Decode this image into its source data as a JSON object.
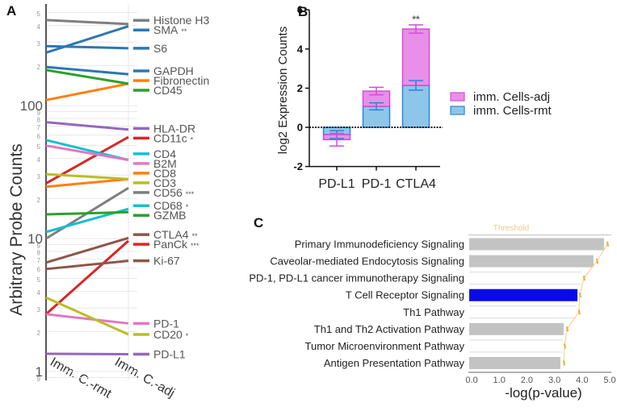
{
  "figure": {
    "panel_labels": [
      "A",
      "B",
      "C"
    ]
  },
  "chart_data": [
    {
      "panel": "A",
      "type": "line",
      "title": "",
      "xlabel": "",
      "ylabel": "Arbitrary Probe Counts",
      "yscale": "log",
      "ylim": [
        0.85,
        560
      ],
      "grid": true,
      "legend": "right (labels at line ends)",
      "categories": [
        "Imm. C.-rmt",
        "Imm. C.-adj"
      ],
      "y_ticks": [
        {
          "value": 500,
          "label": "5"
        },
        {
          "value": 400,
          "label": "4"
        },
        {
          "value": 300,
          "label": "3"
        },
        {
          "value": 200,
          "label": "2"
        },
        {
          "value": 100,
          "label": "100"
        },
        {
          "value": 90,
          "label": "9"
        },
        {
          "value": 80,
          "label": "8"
        },
        {
          "value": 70,
          "label": "7"
        },
        {
          "value": 60,
          "label": "6"
        },
        {
          "value": 50,
          "label": "5"
        },
        {
          "value": 40,
          "label": "4"
        },
        {
          "value": 30,
          "label": "3"
        },
        {
          "value": 20,
          "label": "2"
        },
        {
          "value": 10,
          "label": "10"
        },
        {
          "value": 9,
          "label": "9"
        },
        {
          "value": 8,
          "label": "8"
        },
        {
          "value": 7,
          "label": "7"
        },
        {
          "value": 6,
          "label": "6"
        },
        {
          "value": 5,
          "label": "5"
        },
        {
          "value": 4,
          "label": "4"
        },
        {
          "value": 3,
          "label": "3"
        },
        {
          "value": 2,
          "label": "2"
        },
        {
          "value": 1,
          "label": "1"
        },
        {
          "value": 0.9,
          "label": "9"
        }
      ],
      "series": [
        {
          "name": "Histone H3",
          "values": [
            440,
            410
          ],
          "color": "#7f7f7f",
          "significance": ""
        },
        {
          "name": "SMA",
          "values": [
            250,
            395
          ],
          "color": "#2b78b3",
          "significance": "**"
        },
        {
          "name": "S6",
          "values": [
            280,
            270
          ],
          "color": "#2b78b3",
          "significance": ""
        },
        {
          "name": "GAPDH",
          "values": [
            195,
            172
          ],
          "color": "#2b78b3",
          "significance": ""
        },
        {
          "name": "Fibronectin",
          "values": [
            110,
            146
          ],
          "color": "#ff7f0e",
          "significance": ""
        },
        {
          "name": "CD45",
          "values": [
            185,
            146
          ],
          "color": "#2ca02c",
          "significance": ""
        },
        {
          "name": "HLA-DR",
          "values": [
            75,
            66
          ],
          "color": "#9467bd",
          "significance": ""
        },
        {
          "name": "CD11c",
          "values": [
            26,
            58
          ],
          "color": "#d62728",
          "significance": "*"
        },
        {
          "name": "CD4",
          "values": [
            55,
            39
          ],
          "color": "#17becf",
          "significance": ""
        },
        {
          "name": "B2M",
          "values": [
            50,
            39
          ],
          "color": "#e377c2",
          "significance": ""
        },
        {
          "name": "CD8",
          "values": [
            24.5,
            28
          ],
          "color": "#ff7f0e",
          "significance": ""
        },
        {
          "name": "CD3",
          "values": [
            30.5,
            28
          ],
          "color": "#bcbd22",
          "significance": ""
        },
        {
          "name": "CD56",
          "values": [
            10,
            24
          ],
          "color": "#7f7f7f",
          "significance": "***"
        },
        {
          "name": "CD68",
          "values": [
            11.2,
            16.7
          ],
          "color": "#17becf",
          "significance": "*"
        },
        {
          "name": "GZMB",
          "values": [
            15.2,
            15.8
          ],
          "color": "#2ca02c",
          "significance": ""
        },
        {
          "name": "CTLA4",
          "values": [
            6.6,
            10.1
          ],
          "color": "#8c564b",
          "significance": "**"
        },
        {
          "name": "PanCk",
          "values": [
            2.7,
            9.6
          ],
          "color": "#d62728",
          "significance": "***"
        },
        {
          "name": "Ki-67",
          "values": [
            5.9,
            6.8
          ],
          "color": "#8c564b",
          "significance": ""
        },
        {
          "name": "PD-1",
          "values": [
            2.7,
            2.3
          ],
          "color": "#e377c2",
          "significance": ""
        },
        {
          "name": "CD20",
          "values": [
            3.6,
            1.9
          ],
          "color": "#bcbd22",
          "significance": "*"
        },
        {
          "name": "PD-L1",
          "values": [
            1.36,
            1.35
          ],
          "color": "#9467bd",
          "significance": ""
        }
      ]
    },
    {
      "panel": "B",
      "type": "bar",
      "stacked": true,
      "title": "",
      "xlabel": "",
      "ylabel": "log2 Expression Counts",
      "ylim": [
        -2,
        6
      ],
      "grid": false,
      "legend": "right",
      "reference_line": 0,
      "categories": [
        "PD-L1",
        "PD-1",
        "CTLA4"
      ],
      "y_ticks": [
        {
          "value": 6,
          "label": "6"
        },
        {
          "value": 4,
          "label": "4"
        },
        {
          "value": 2,
          "label": "2"
        },
        {
          "value": 0,
          "label": "0"
        },
        {
          "value": -2,
          "label": "-2"
        }
      ],
      "series": [
        {
          "name": "imm. Cells-rmt",
          "values": [
            -0.37,
            1.07,
            2.14
          ],
          "errors": [
            0.2,
            0.18,
            0.24
          ],
          "fill": "#8ec6ea",
          "stroke": "#2a86d6"
        },
        {
          "name": "imm. Cells-adj",
          "values": [
            -0.26,
            0.78,
            2.88
          ],
          "errors": [
            0.32,
            0.19,
            0.21
          ],
          "fill": "#e98fe9",
          "stroke": "#d24ed2"
        }
      ],
      "annotations": [
        {
          "category_index": 2,
          "text": "**"
        }
      ]
    },
    {
      "panel": "C",
      "type": "bar",
      "orientation": "horizontal",
      "title": "",
      "xlabel": "-log(p-value)",
      "ylabel": "",
      "xlim": [
        0,
        5
      ],
      "grid": false,
      "categories": [
        "Primary Immunodeficiency Signaling",
        "Caveolar-mediated Endocytosis Signaling",
        "PD-1, PD-L1 cancer immunotherapy Signaling",
        "T Cell Receptor Signaling",
        "Th1 Pathway",
        "Th1 and Th2 Activation Pathway",
        "Tumor Microenvironment Pathway",
        "Antigen Presentation Pathway"
      ],
      "values": [
        4.88,
        4.5,
        4.06,
        3.92,
        3.86,
        3.42,
        3.39,
        3.3
      ],
      "bar_colors": [
        "#c3c3c3",
        "#c3c3c3",
        "#ffffff",
        "#0a0ae6",
        "#ffffff",
        "#c3c3c3",
        "#ffffff",
        "#c3c3c3"
      ],
      "threshold": {
        "label": "Threshold",
        "color": "#f0b040",
        "values": [
          5.0,
          4.62,
          4.15,
          4.0,
          3.97,
          3.54,
          3.45,
          3.42
        ]
      },
      "x_ticks": [
        {
          "value": 0,
          "label": "0.0"
        },
        {
          "value": 1,
          "label": "1.0"
        },
        {
          "value": 2,
          "label": "2.0"
        },
        {
          "value": 3,
          "label": "3.0"
        },
        {
          "value": 4,
          "label": "4.0"
        },
        {
          "value": 5,
          "label": "5.0"
        }
      ]
    }
  ]
}
